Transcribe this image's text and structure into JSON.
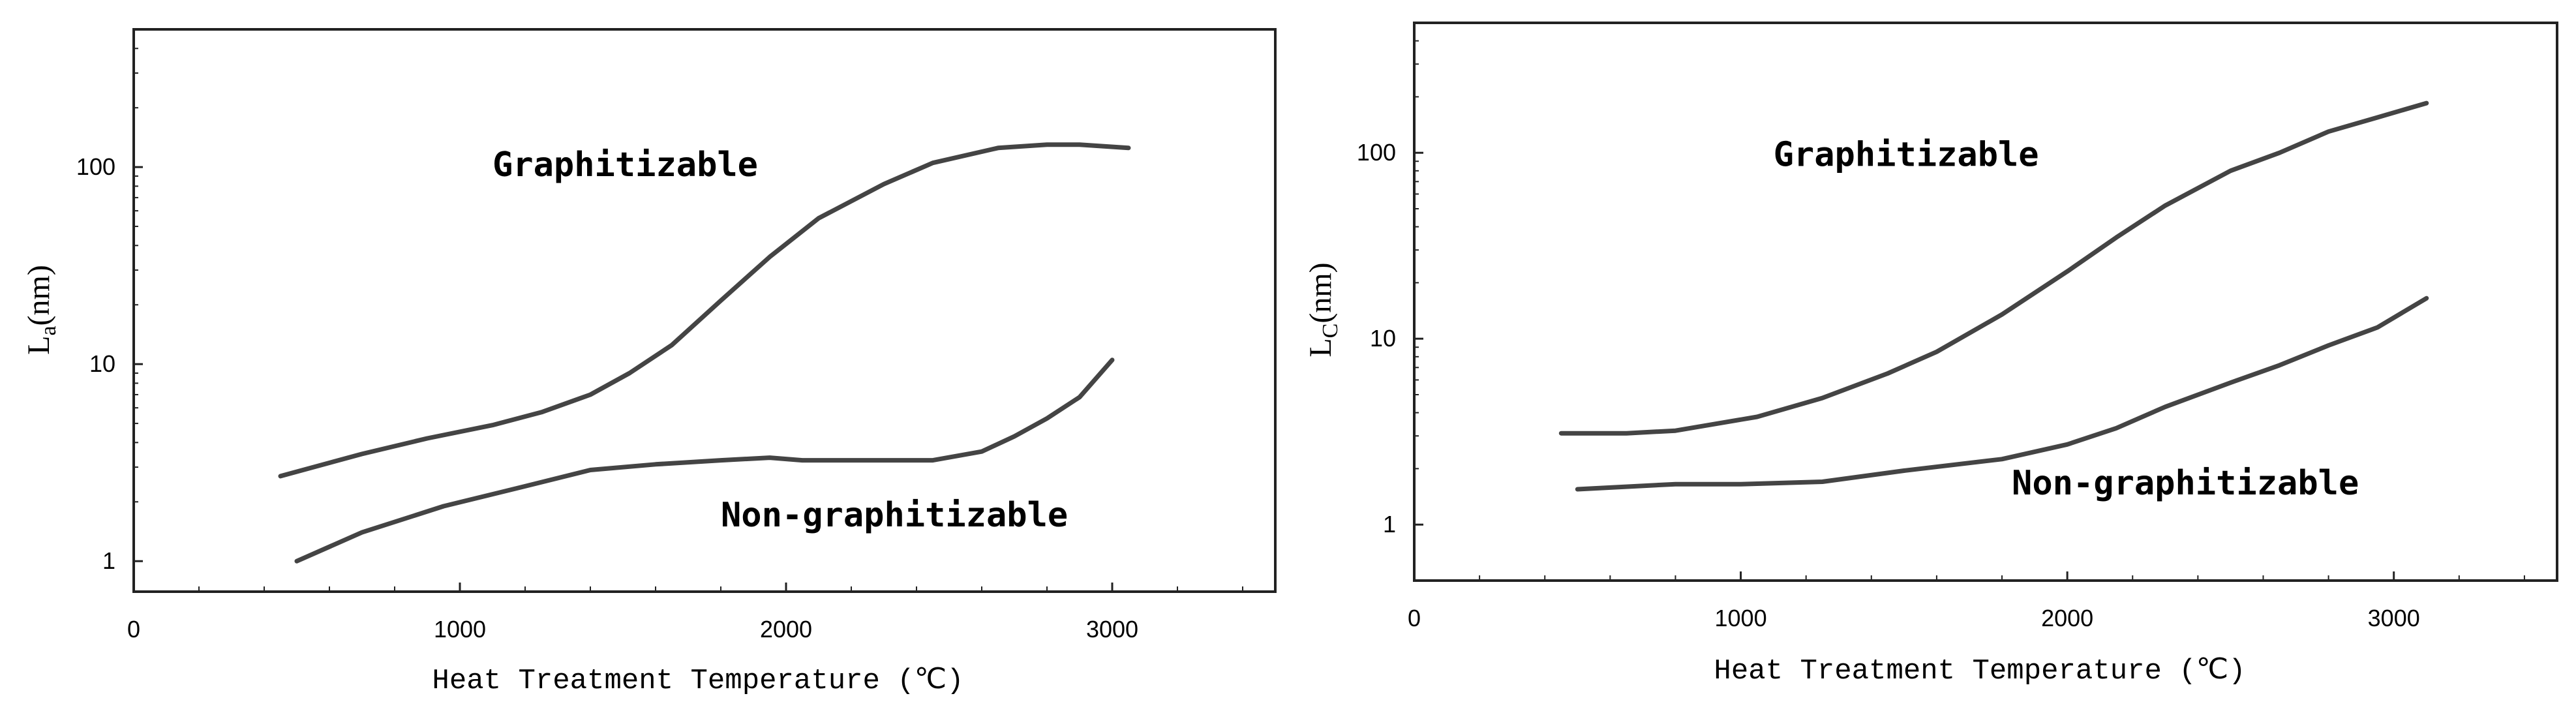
{
  "chart_data": [
    {
      "type": "line",
      "xlabel": "Heat Treatment Temperature (℃)",
      "ylabel_main": "L",
      "ylabel_sub": "a",
      "ylabel_unit": "(nm)",
      "xlim": [
        0,
        3500
      ],
      "ylim": [
        0.7,
        500
      ],
      "y_scale": "log",
      "x_ticks": [
        "0",
        "1000",
        "2000",
        "3000"
      ],
      "y_ticks": [
        "1",
        "10",
        "100"
      ],
      "series": [
        {
          "name": "Graphitizable",
          "x": [
            450,
            700,
            900,
            1100,
            1250,
            1400,
            1520,
            1650,
            1800,
            1950,
            2100,
            2300,
            2450,
            2650,
            2800,
            2900,
            3050
          ],
          "values": [
            2.7,
            3.5,
            4.2,
            4.9,
            5.7,
            7.0,
            9.0,
            12.5,
            21,
            35,
            55,
            82,
            105,
            125,
            130,
            130,
            125
          ]
        },
        {
          "name": "Non-graphitizable",
          "x": [
            500,
            700,
            950,
            1200,
            1400,
            1600,
            1800,
            1950,
            2050,
            2200,
            2450,
            2600,
            2700,
            2800,
            2900,
            3000
          ],
          "values": [
            1.0,
            1.4,
            1.9,
            2.4,
            2.9,
            3.1,
            3.25,
            3.35,
            3.25,
            3.25,
            3.25,
            3.6,
            4.3,
            5.3,
            6.8,
            10.5
          ]
        }
      ],
      "annotations": [
        {
          "text": "Graphitizable",
          "x": 1100,
          "y": 90
        },
        {
          "text": "Non-graphitizable",
          "x": 1800,
          "y": 1.5
        }
      ]
    },
    {
      "type": "line",
      "xlabel": "Heat Treatment Temperature (℃)",
      "ylabel_main": "L",
      "ylabel_sub": "C",
      "ylabel_unit": "(nm)",
      "xlim": [
        0,
        3500
      ],
      "ylim": [
        0.5,
        500
      ],
      "y_scale": "log",
      "x_ticks": [
        "0",
        "1000",
        "2000",
        "3000"
      ],
      "y_ticks": [
        "1",
        "10",
        "100"
      ],
      "series": [
        {
          "name": "Graphitizable",
          "x": [
            450,
            650,
            800,
            1050,
            1250,
            1450,
            1600,
            1800,
            2000,
            2150,
            2300,
            2500,
            2650,
            2800,
            2950,
            3100
          ],
          "values": [
            3.1,
            3.1,
            3.2,
            3.8,
            4.8,
            6.5,
            8.5,
            13.5,
            23,
            35,
            52,
            80,
            100,
            130,
            155,
            185
          ]
        },
        {
          "name": "Non-graphitizable",
          "x": [
            500,
            800,
            1000,
            1250,
            1500,
            1800,
            2000,
            2150,
            2300,
            2500,
            2650,
            2800,
            2950,
            3100
          ],
          "values": [
            1.55,
            1.65,
            1.65,
            1.7,
            1.95,
            2.25,
            2.7,
            3.3,
            4.3,
            5.8,
            7.2,
            9.2,
            11.5,
            16.5
          ]
        }
      ],
      "annotations": [
        {
          "text": "Graphitizable",
          "x": 1100,
          "y": 85
        },
        {
          "text": "Non-graphitizable",
          "x": 1830,
          "y": 1.45
        }
      ]
    }
  ]
}
